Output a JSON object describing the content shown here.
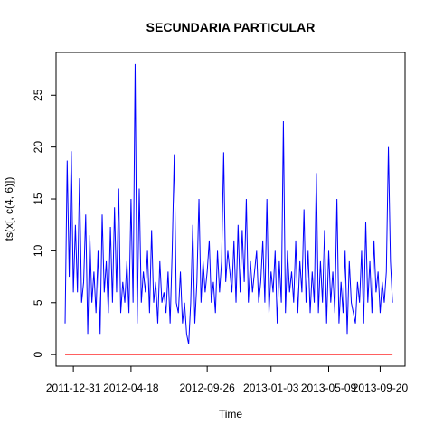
{
  "chart_data": {
    "type": "line",
    "title": "SECUNDARIA PARTICULAR",
    "x_label": "Time",
    "y_label": "ts(x[, c(4, 6)])",
    "ylim": [
      -1.12,
      29.12
    ],
    "yticks": [
      0,
      5,
      10,
      15,
      20,
      25
    ],
    "xlim": [
      -3.4,
      166.1
    ],
    "xticks": [
      {
        "value": 5,
        "label": "2011-12-31"
      },
      {
        "value": 33,
        "label": "2012-04-18"
      },
      {
        "value": 70,
        "label": "2012-09-26"
      },
      {
        "value": 101,
        "label": "2013-01-03"
      },
      {
        "value": 129,
        "label": "2013-05-09"
      },
      {
        "value": 154,
        "label": "2013-09-20"
      }
    ],
    "series": [
      {
        "color": "#0000ff",
        "values": [
          3,
          18.7,
          7.5,
          19.6,
          6,
          12.5,
          6,
          17,
          5,
          7,
          13.5,
          2,
          11.5,
          5,
          8,
          4,
          10,
          2,
          13.5,
          6,
          9,
          4,
          12.3,
          5,
          14.2,
          6,
          16,
          4,
          7,
          5,
          9,
          4,
          15,
          5,
          28,
          3,
          16,
          5,
          8,
          6,
          10,
          4,
          12,
          5,
          7,
          3,
          9,
          5,
          6,
          4,
          8,
          3,
          10,
          19.3,
          5,
          4,
          8,
          3,
          5,
          2,
          1,
          5,
          12.5,
          3,
          7,
          15,
          5,
          9,
          6,
          8,
          11,
          5,
          7,
          4,
          10,
          6,
          9,
          19.5,
          7,
          10,
          8,
          6,
          11,
          5,
          12.5,
          6,
          12,
          7,
          15,
          5,
          9,
          6,
          8,
          10,
          5,
          7,
          11,
          5,
          15,
          4,
          8,
          6,
          10,
          3,
          9,
          5,
          22.5,
          4,
          10,
          6,
          8,
          5,
          11,
          4,
          9,
          6,
          14,
          5,
          10,
          4,
          8,
          5,
          17.5,
          4,
          9,
          5,
          12,
          3,
          10,
          5,
          8,
          4,
          15,
          3,
          7,
          4,
          10,
          2,
          9,
          5,
          4,
          3,
          7,
          5,
          10,
          3,
          12.8,
          5,
          9,
          4,
          11,
          6,
          8,
          4,
          7,
          5,
          8,
          20,
          9,
          5
        ]
      },
      {
        "color": "#ff0000",
        "values": [
          0,
          0,
          0,
          0,
          0,
          0,
          0,
          0,
          0,
          0,
          0,
          0,
          0,
          0,
          0,
          0,
          0,
          0,
          0,
          0,
          0,
          0,
          0,
          0,
          0,
          0,
          0,
          0,
          0,
          0,
          0,
          0,
          0,
          0,
          0,
          0,
          0,
          0,
          0,
          0,
          0,
          0,
          0,
          0,
          0,
          0,
          0,
          0,
          0,
          0,
          0,
          0,
          0,
          0,
          0,
          0,
          0,
          0,
          0,
          0,
          0,
          0,
          0,
          0,
          0,
          0,
          0,
          0,
          0,
          0,
          0,
          0,
          0,
          0,
          0,
          0,
          0,
          0,
          0,
          0,
          0,
          0,
          0,
          0,
          0,
          0,
          0,
          0,
          0,
          0,
          0,
          0,
          0,
          0,
          0,
          0,
          0,
          0,
          0,
          0,
          0,
          0,
          0,
          0,
          0,
          0,
          0,
          0,
          0,
          0,
          0,
          0,
          0,
          0,
          0,
          0,
          0,
          0,
          0,
          0,
          0,
          0,
          0,
          0,
          0,
          0,
          0,
          0,
          0,
          0,
          0,
          0,
          0,
          0,
          0,
          0,
          0,
          0,
          0,
          0,
          0,
          0,
          0,
          0,
          0,
          0,
          0,
          0,
          0,
          0,
          0,
          0,
          0,
          0,
          0,
          0,
          0,
          0,
          0,
          0
        ]
      }
    ]
  }
}
